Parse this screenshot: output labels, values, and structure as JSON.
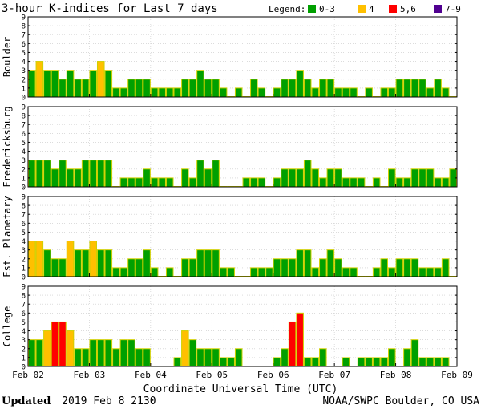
{
  "chart_data": {
    "type": "bar",
    "title": "3-hour K-indices for Last 7 days",
    "legend": {
      "label": "Legend:",
      "placement": "top-right",
      "entries": [
        {
          "label": "0-3",
          "color": "#00a000"
        },
        {
          "label": "4",
          "color": "#ffc000"
        },
        {
          "label": "5,6",
          "color": "#ff0000"
        },
        {
          "label": "7-9",
          "color": "#500090"
        }
      ]
    },
    "bar_edge_color": "#d0d000",
    "xlabel": "Coordinate Universal Time (UTC)",
    "x_ticks": [
      "Feb 02",
      "Feb 03",
      "Feb 04",
      "Feb 05",
      "Feb 06",
      "Feb 07",
      "Feb 08",
      "Feb 09"
    ],
    "ylim": [
      0,
      9
    ],
    "y_ticks": [
      "0",
      "1",
      "2",
      "3",
      "4",
      "5",
      "6",
      "7",
      "8",
      "9"
    ],
    "grid": true,
    "intervals_per_day": 8,
    "series": [
      {
        "name": "Boulder",
        "values": [
          3,
          4,
          3,
          3,
          2,
          3,
          2,
          2,
          3,
          4,
          3,
          1,
          1,
          2,
          2,
          2,
          1,
          1,
          1,
          1,
          2,
          2,
          3,
          2,
          2,
          1,
          0,
          1,
          0,
          2,
          1,
          0,
          1,
          2,
          2,
          3,
          2,
          1,
          2,
          2,
          1,
          1,
          1,
          0,
          1,
          0,
          1,
          1,
          2,
          2,
          2,
          2,
          1,
          2,
          1,
          0
        ]
      },
      {
        "name": "Fredericksburg",
        "values": [
          3,
          3,
          3,
          2,
          3,
          2,
          2,
          3,
          3,
          3,
          3,
          0,
          1,
          1,
          1,
          2,
          1,
          1,
          1,
          0,
          2,
          1,
          3,
          2,
          3,
          0,
          0,
          0,
          1,
          1,
          1,
          0,
          1,
          2,
          2,
          2,
          3,
          2,
          1,
          2,
          2,
          1,
          1,
          1,
          0,
          1,
          0,
          2,
          1,
          1,
          2,
          2,
          2,
          1,
          1,
          2
        ]
      },
      {
        "name": "Est. Planetary",
        "values": [
          4,
          4,
          3,
          2,
          2,
          4,
          3,
          3,
          4,
          3,
          3,
          1,
          1,
          2,
          2,
          3,
          1,
          0,
          1,
          0,
          2,
          2,
          3,
          3,
          3,
          1,
          1,
          0,
          0,
          1,
          1,
          1,
          2,
          2,
          2,
          3,
          3,
          1,
          2,
          3,
          2,
          1,
          1,
          0,
          0,
          1,
          2,
          1,
          2,
          2,
          2,
          1,
          1,
          1,
          2,
          0
        ]
      },
      {
        "name": "College",
        "values": [
          3,
          3,
          4,
          5,
          5,
          4,
          2,
          2,
          3,
          3,
          3,
          2,
          3,
          3,
          2,
          2,
          0,
          0,
          0,
          1,
          4,
          3,
          2,
          2,
          2,
          1,
          1,
          2,
          0,
          0,
          0,
          0,
          1,
          2,
          5,
          6,
          1,
          1,
          2,
          0,
          0,
          1,
          0,
          1,
          1,
          1,
          1,
          2,
          0,
          2,
          3,
          1,
          1,
          1,
          1,
          0
        ]
      }
    ]
  },
  "footer": {
    "updated_label": "Updated",
    "updated_value": "2019 Feb  8 2130",
    "credit": "NOAA/SWPC Boulder, CO USA"
  }
}
